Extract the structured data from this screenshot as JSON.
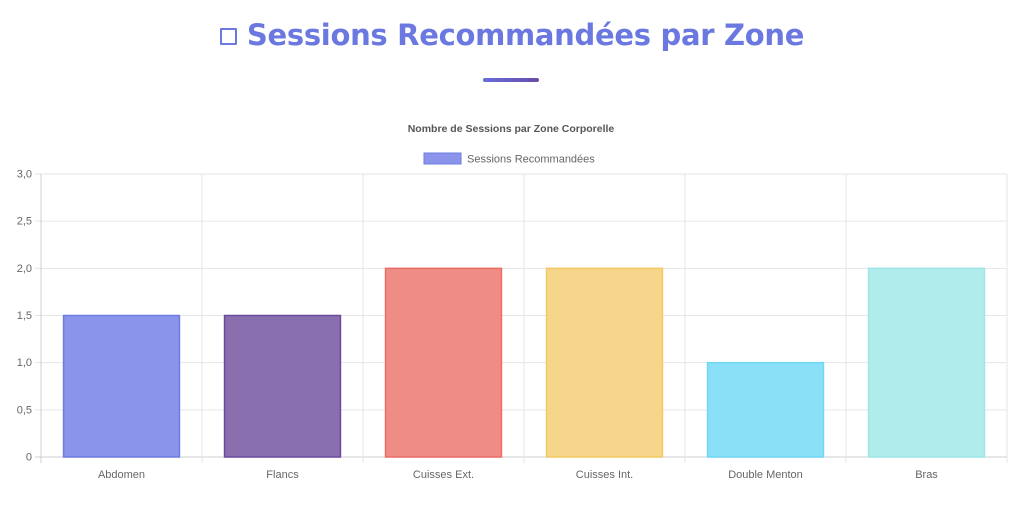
{
  "header": {
    "title": "Sessions Recommandées par Zone",
    "icon": "square-outline-icon",
    "accent_color": "#6a78e0"
  },
  "chart_data": {
    "type": "bar",
    "title": "Nombre de Sessions par Zone Corporelle",
    "legend_position": "top",
    "grid": true,
    "ylim": [
      0,
      3
    ],
    "yticks": [
      {
        "value": 0,
        "label": "0"
      },
      {
        "value": 0.5,
        "label": "0,5"
      },
      {
        "value": 1,
        "label": "1,0"
      },
      {
        "value": 1.5,
        "label": "1,5"
      },
      {
        "value": 2,
        "label": "2,0"
      },
      {
        "value": 2.5,
        "label": "2,5"
      },
      {
        "value": 3,
        "label": "3,0"
      }
    ],
    "categories": [
      "Abdomen",
      "Flancs",
      "Cuisses Ext.",
      "Cuisses Int.",
      "Double Menton",
      "Bras"
    ],
    "series": [
      {
        "name": "Sessions Recommandées",
        "values": [
          1.5,
          1.5,
          2,
          2,
          1,
          2
        ],
        "colors": [
          "#8994ea",
          "#896fae",
          "#ef8c86",
          "#f6d68a",
          "#8ae0f7",
          "#b1ecec"
        ],
        "border_colors": [
          "#6e7ce0",
          "#6b4a9e",
          "#ec6c66",
          "#f4c863",
          "#6fd6f3",
          "#9ee6e6"
        ],
        "legend_color": "#8994ea",
        "legend_border": "#6e7ce0"
      }
    ]
  }
}
